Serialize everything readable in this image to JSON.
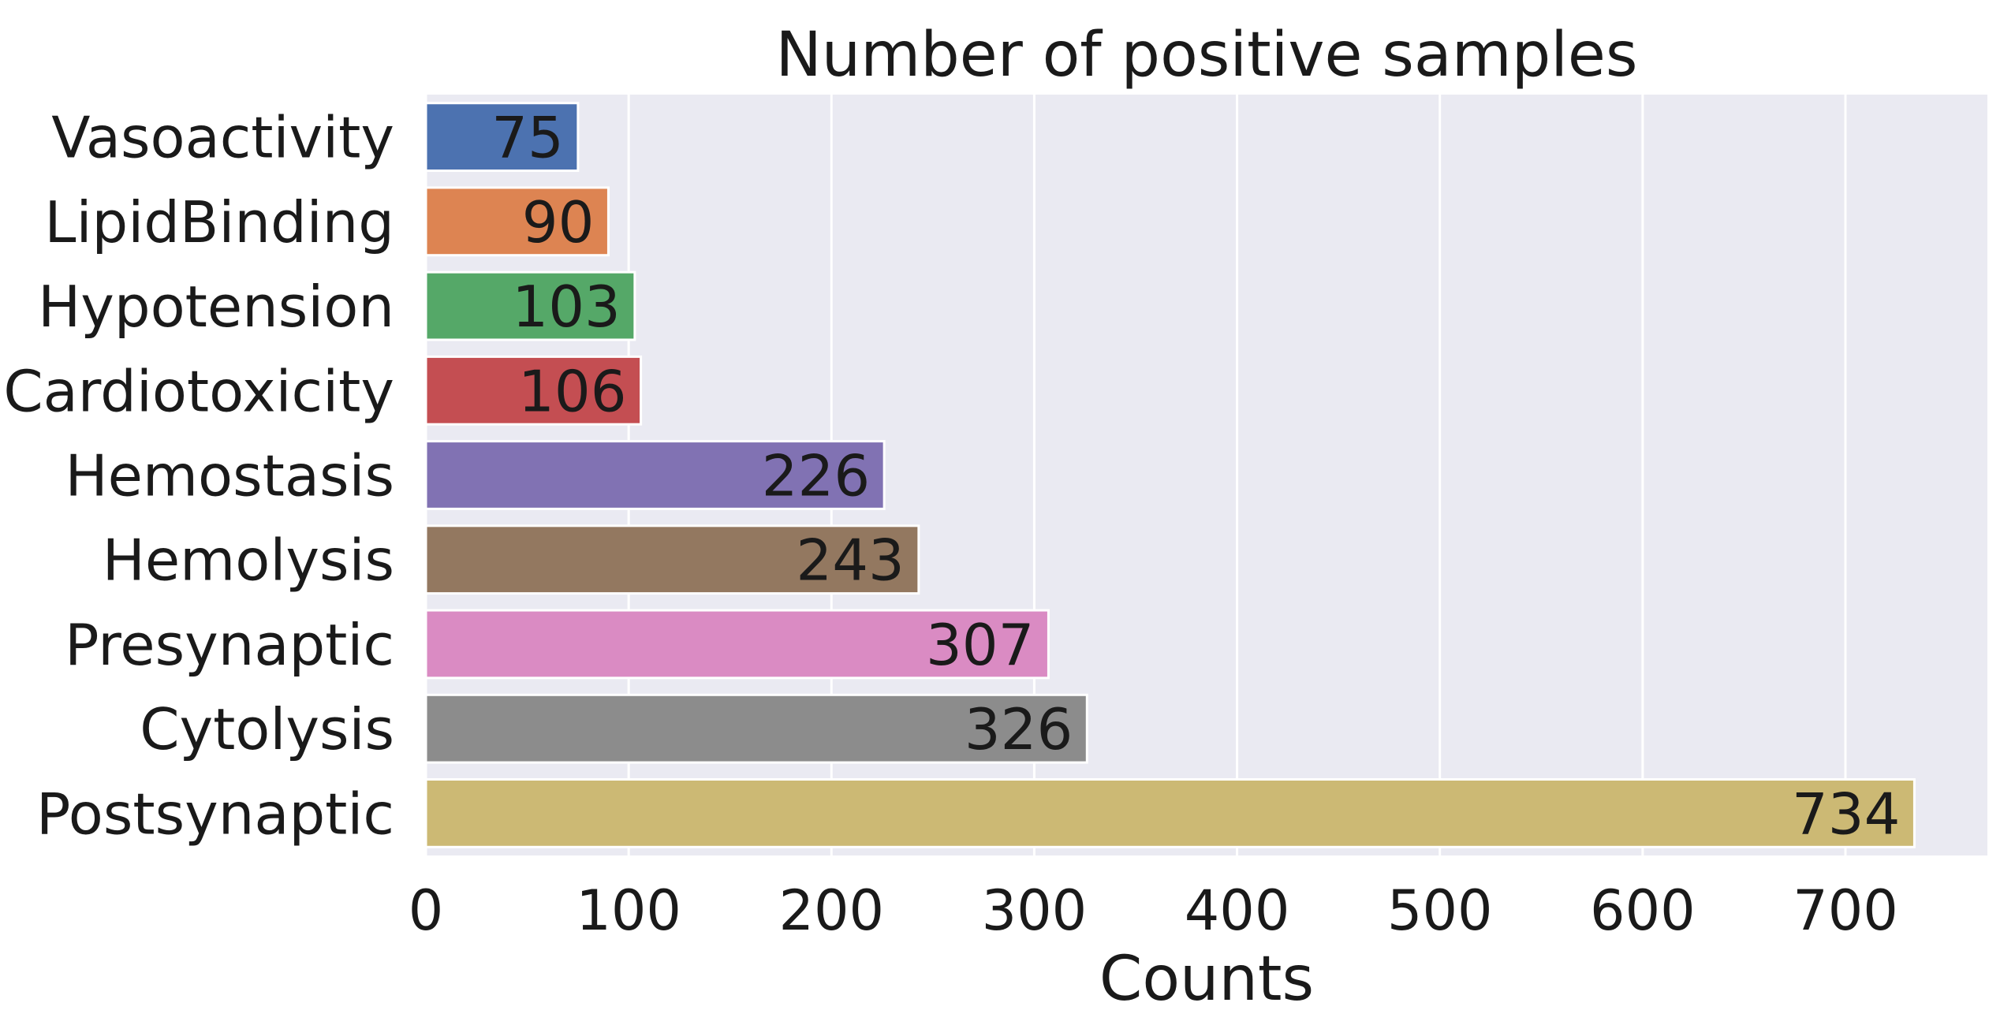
{
  "chart_data": {
    "type": "bar",
    "orientation": "horizontal",
    "title": "Number of positive samples",
    "xlabel": "Counts",
    "ylabel": "",
    "categories": [
      "Vasoactivity",
      "LipidBinding",
      "Hypotension",
      "Cardiotoxicity",
      "Hemostasis",
      "Hemolysis",
      "Presynaptic",
      "Cytolysis",
      "Postsynaptic"
    ],
    "values": [
      75,
      90,
      103,
      106,
      226,
      243,
      307,
      326,
      734
    ],
    "value_labels": [
      "75",
      "90",
      "103",
      "106",
      "226",
      "243",
      "307",
      "326",
      "734"
    ],
    "colors": [
      "#4c72b0",
      "#dd8452",
      "#55a868",
      "#c44e52",
      "#8172b3",
      "#937860",
      "#da8bc3",
      "#8c8c8c",
      "#ccb974"
    ],
    "xlim": [
      0,
      770
    ],
    "xticks": [
      0,
      100,
      200,
      300,
      400,
      500,
      600,
      700
    ],
    "xtick_labels": [
      "0",
      "100",
      "200",
      "300",
      "400",
      "500",
      "600",
      "700"
    ],
    "grid": true,
    "background": "#eaeaf2",
    "grid_color": "#ffffff"
  }
}
